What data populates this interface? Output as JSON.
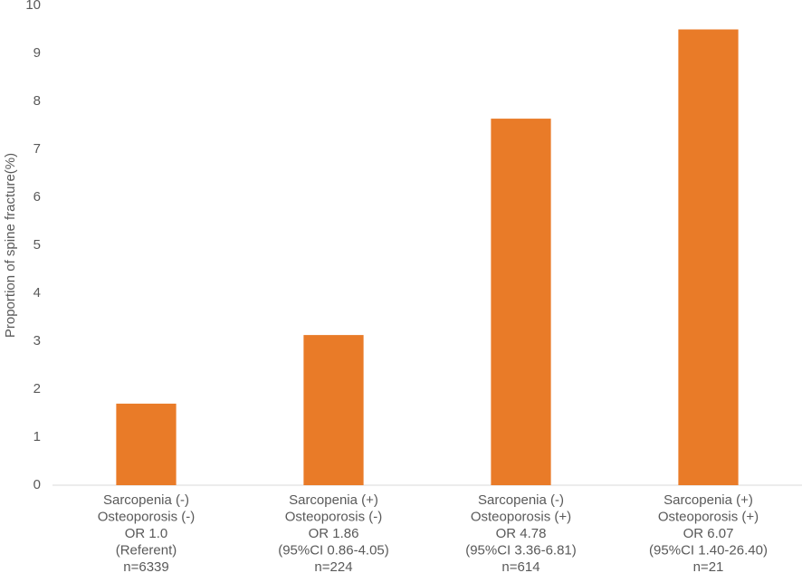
{
  "chart_data": {
    "type": "bar",
    "y_label": "Proportion of spine fracture(%)",
    "categories": [
      [
        "Sarcopenia (-)",
        "Osteoporosis (-)",
        "OR 1.0",
        "(Referent)",
        "n=6339"
      ],
      [
        "Sarcopenia (+)",
        "Osteoporosis (-)",
        "OR 1.86",
        "(95%CI 0.86-4.05)",
        "n=224"
      ],
      [
        "Sarcopenia (-)",
        "Osteoporosis (+)",
        "OR 4.78",
        "(95%CI 3.36-6.81)",
        "n=614"
      ],
      [
        "Sarcopenia (+)",
        "Osteoporosis (+)",
        "OR 6.07",
        "(95%CI 1.40-26.40)",
        "n=21"
      ]
    ],
    "values": [
      1.7,
      3.13,
      7.64,
      9.5
    ],
    "color": "#e97b28",
    "ylim": [
      0,
      10
    ],
    "yticks": [
      0,
      1,
      2,
      3,
      4,
      5,
      6,
      7,
      8,
      9,
      10
    ],
    "grid": false
  }
}
